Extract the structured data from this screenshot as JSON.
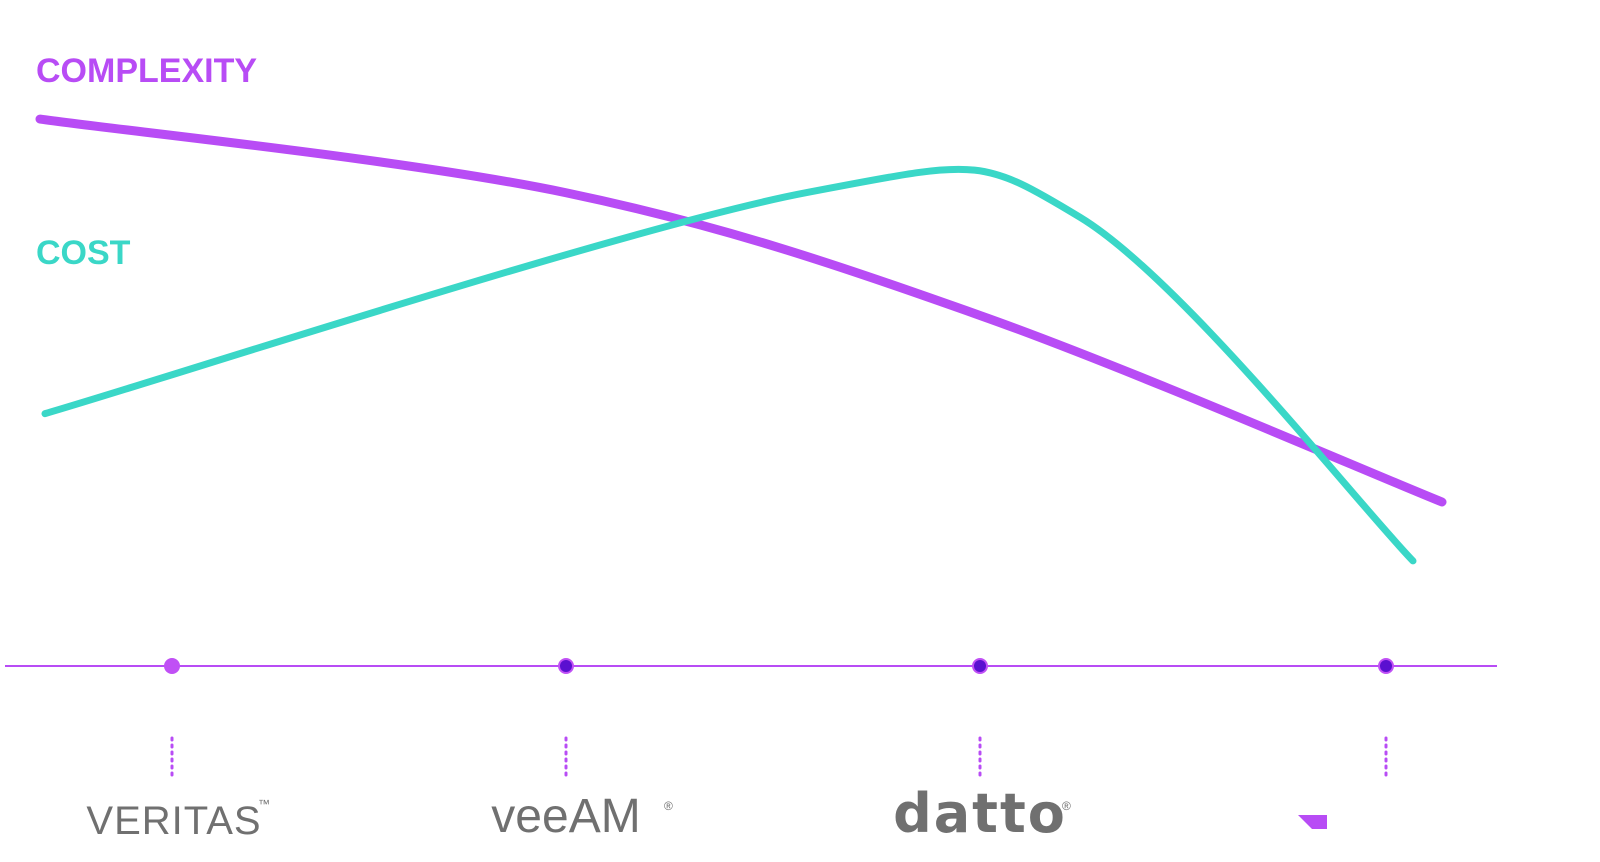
{
  "chart_data": {
    "type": "line",
    "x": [
      "VERITAS",
      "veeAM",
      "datto",
      ""
    ],
    "series": [
      {
        "name": "COMPLEXITY",
        "color": "#b84cf5",
        "values": [
          100,
          85,
          60,
          22
        ]
      },
      {
        "name": "COST",
        "color": "#3ad7c7",
        "values": [
          40,
          85,
          80,
          10
        ]
      }
    ],
    "ylim": [
      0,
      110
    ],
    "legend": "top-left",
    "axis_color": "#b84cf5",
    "markers": [
      {
        "color": "#c050f5"
      },
      {
        "color": "#5a10d0"
      },
      {
        "color": "#5a10d0"
      },
      {
        "color": "#5a10d0"
      }
    ],
    "vendors": [
      {
        "name": "VERITAS",
        "mark": "™"
      },
      {
        "name": "veeAM",
        "mark": "®"
      },
      {
        "name": "datto",
        "mark": "®"
      },
      {
        "name": "",
        "logo": "purple-shape"
      }
    ]
  }
}
